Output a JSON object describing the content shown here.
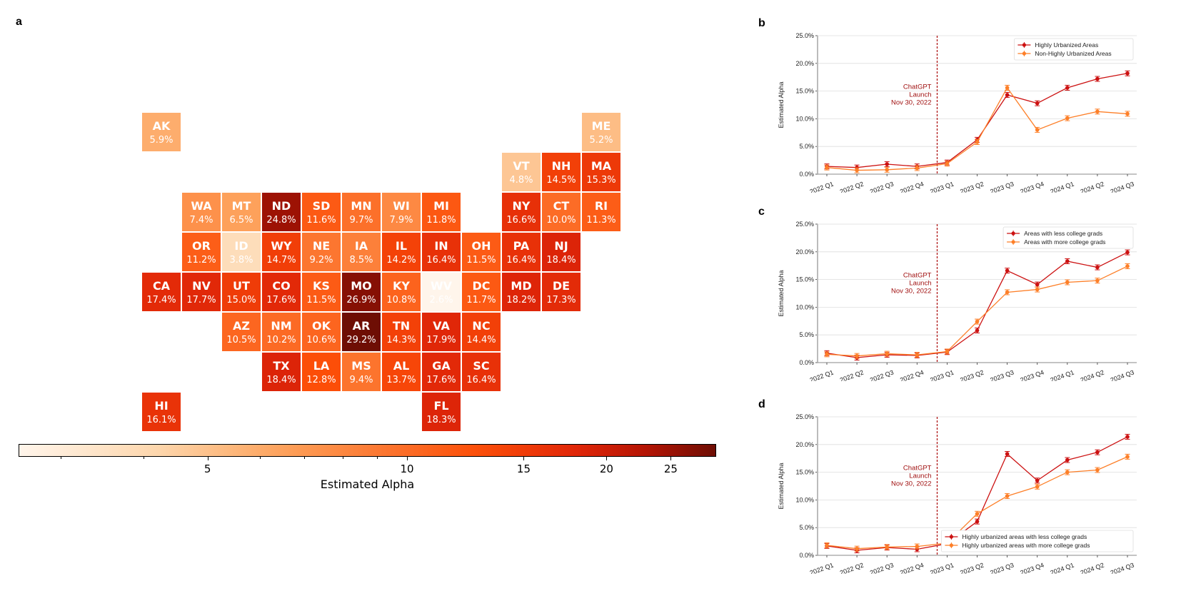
{
  "panel_a": {
    "letter": "a",
    "chart_data": {
      "type": "heatmap",
      "title": "",
      "colorbar_label": "Estimated Alpha",
      "colorbar_scale": "log",
      "colorbar_range": [
        2.6,
        29.2
      ],
      "colorbar_ticks": [
        "5",
        "10",
        "15",
        "20",
        "25"
      ],
      "colormap": "Oranges-to-dark-red",
      "states": [
        {
          "abbr": "AK",
          "value": 5.9,
          "label": "5.9%",
          "row": 0,
          "col": 0
        },
        {
          "abbr": "ME",
          "value": 5.2,
          "label": "5.2%",
          "row": 0,
          "col": 11
        },
        {
          "abbr": "VT",
          "value": 4.8,
          "label": "4.8%",
          "row": 1,
          "col": 9
        },
        {
          "abbr": "NH",
          "value": 14.5,
          "label": "14.5%",
          "row": 1,
          "col": 10
        },
        {
          "abbr": "MA",
          "value": 15.3,
          "label": "15.3%",
          "row": 1,
          "col": 11
        },
        {
          "abbr": "WA",
          "value": 7.4,
          "label": "7.4%",
          "row": 2,
          "col": 1
        },
        {
          "abbr": "MT",
          "value": 6.5,
          "label": "6.5%",
          "row": 2,
          "col": 2
        },
        {
          "abbr": "ND",
          "value": 24.8,
          "label": "24.8%",
          "row": 2,
          "col": 3
        },
        {
          "abbr": "SD",
          "value": 11.6,
          "label": "11.6%",
          "row": 2,
          "col": 4
        },
        {
          "abbr": "MN",
          "value": 9.7,
          "label": "9.7%",
          "row": 2,
          "col": 5
        },
        {
          "abbr": "WI",
          "value": 7.9,
          "label": "7.9%",
          "row": 2,
          "col": 6
        },
        {
          "abbr": "MI",
          "value": 11.8,
          "label": "11.8%",
          "row": 2,
          "col": 7
        },
        {
          "abbr": "NY",
          "value": 16.6,
          "label": "16.6%",
          "row": 2,
          "col": 9
        },
        {
          "abbr": "CT",
          "value": 10.0,
          "label": "10.0%",
          "row": 2,
          "col": 10
        },
        {
          "abbr": "RI",
          "value": 11.3,
          "label": "11.3%",
          "row": 2,
          "col": 11
        },
        {
          "abbr": "OR",
          "value": 11.2,
          "label": "11.2%",
          "row": 3,
          "col": 1
        },
        {
          "abbr": "ID",
          "value": 3.8,
          "label": "3.8%",
          "row": 3,
          "col": 2
        },
        {
          "abbr": "WY",
          "value": 14.7,
          "label": "14.7%",
          "row": 3,
          "col": 3
        },
        {
          "abbr": "NE",
          "value": 9.2,
          "label": "9.2%",
          "row": 3,
          "col": 4
        },
        {
          "abbr": "IA",
          "value": 8.5,
          "label": "8.5%",
          "row": 3,
          "col": 5
        },
        {
          "abbr": "IL",
          "value": 14.2,
          "label": "14.2%",
          "row": 3,
          "col": 6
        },
        {
          "abbr": "IN",
          "value": 16.4,
          "label": "16.4%",
          "row": 3,
          "col": 7
        },
        {
          "abbr": "OH",
          "value": 11.5,
          "label": "11.5%",
          "row": 3,
          "col": 8
        },
        {
          "abbr": "PA",
          "value": 16.4,
          "label": "16.4%",
          "row": 3,
          "col": 9
        },
        {
          "abbr": "NJ",
          "value": 18.4,
          "label": "18.4%",
          "row": 3,
          "col": 10
        },
        {
          "abbr": "CA",
          "value": 17.4,
          "label": "17.4%",
          "row": 4,
          "col": 0
        },
        {
          "abbr": "NV",
          "value": 17.7,
          "label": "17.7%",
          "row": 4,
          "col": 1
        },
        {
          "abbr": "UT",
          "value": 15.0,
          "label": "15.0%",
          "row": 4,
          "col": 2
        },
        {
          "abbr": "CO",
          "value": 17.6,
          "label": "17.6%",
          "row": 4,
          "col": 3
        },
        {
          "abbr": "KS",
          "value": 11.5,
          "label": "11.5%",
          "row": 4,
          "col": 4
        },
        {
          "abbr": "MO",
          "value": 26.9,
          "label": "26.9%",
          "row": 4,
          "col": 5
        },
        {
          "abbr": "KY",
          "value": 10.8,
          "label": "10.8%",
          "row": 4,
          "col": 6
        },
        {
          "abbr": "WV",
          "value": 2.6,
          "label": "2.6%",
          "row": 4,
          "col": 7
        },
        {
          "abbr": "DC",
          "value": 11.7,
          "label": "11.7%",
          "row": 4,
          "col": 8
        },
        {
          "abbr": "MD",
          "value": 18.2,
          "label": "18.2%",
          "row": 4,
          "col": 9
        },
        {
          "abbr": "DE",
          "value": 17.3,
          "label": "17.3%",
          "row": 4,
          "col": 10
        },
        {
          "abbr": "AZ",
          "value": 10.5,
          "label": "10.5%",
          "row": 5,
          "col": 2
        },
        {
          "abbr": "NM",
          "value": 10.2,
          "label": "10.2%",
          "row": 5,
          "col": 3
        },
        {
          "abbr": "OK",
          "value": 10.6,
          "label": "10.6%",
          "row": 5,
          "col": 4
        },
        {
          "abbr": "AR",
          "value": 29.2,
          "label": "29.2%",
          "row": 5,
          "col": 5
        },
        {
          "abbr": "TN",
          "value": 14.3,
          "label": "14.3%",
          "row": 5,
          "col": 6
        },
        {
          "abbr": "VA",
          "value": 17.9,
          "label": "17.9%",
          "row": 5,
          "col": 7
        },
        {
          "abbr": "NC",
          "value": 14.4,
          "label": "14.4%",
          "row": 5,
          "col": 8
        },
        {
          "abbr": "TX",
          "value": 18.4,
          "label": "18.4%",
          "row": 6,
          "col": 3
        },
        {
          "abbr": "LA",
          "value": 12.8,
          "label": "12.8%",
          "row": 6,
          "col": 4
        },
        {
          "abbr": "MS",
          "value": 9.4,
          "label": "9.4%",
          "row": 6,
          "col": 5
        },
        {
          "abbr": "AL",
          "value": 13.7,
          "label": "13.7%",
          "row": 6,
          "col": 6
        },
        {
          "abbr": "GA",
          "value": 17.6,
          "label": "17.6%",
          "row": 6,
          "col": 7
        },
        {
          "abbr": "SC",
          "value": 16.4,
          "label": "16.4%",
          "row": 6,
          "col": 8
        },
        {
          "abbr": "HI",
          "value": 16.1,
          "label": "16.1%",
          "row": 7,
          "col": 0
        },
        {
          "abbr": "FL",
          "value": 18.3,
          "label": "18.3%",
          "row": 7,
          "col": 7
        }
      ]
    }
  },
  "chart_data": [
    {
      "id": "b",
      "type": "line",
      "letter": "b",
      "title": "",
      "xlabel": "",
      "ylabel": "Estimated Alpha",
      "ylim": [
        0,
        25
      ],
      "yticks": [
        "0.0%",
        "5.0%",
        "10.0%",
        "15.0%",
        "20.0%",
        "25.0%"
      ],
      "grid": true,
      "categories": [
        "2022 Q1",
        "2022 Q2",
        "2022 Q3",
        "2022 Q4",
        "2023 Q1",
        "2023 Q2",
        "2023 Q3",
        "2023 Q4",
        "2024 Q1",
        "2024 Q2",
        "2024 Q3"
      ],
      "annotation": {
        "lines": [
          "ChatGPT",
          "Launch",
          "Nov 30, 2022"
        ],
        "between": [
          "2022 Q4",
          "2023 Q1"
        ]
      },
      "legend_position": "top-right",
      "series": [
        {
          "name": "Highly Urbanized Areas",
          "color": "#cc1111",
          "values": [
            1.4,
            1.2,
            1.8,
            1.4,
            2.1,
            6.2,
            14.3,
            12.8,
            15.6,
            17.2,
            18.2
          ]
        },
        {
          "name": "Non-Highly Urbanized Areas",
          "color": "#fd7f28",
          "values": [
            1.2,
            0.7,
            0.8,
            1.1,
            1.9,
            5.8,
            15.6,
            8.0,
            10.1,
            11.3,
            10.9
          ]
        }
      ]
    },
    {
      "id": "c",
      "type": "line",
      "letter": "c",
      "title": "",
      "xlabel": "",
      "ylabel": "Estimated Alpha",
      "ylim": [
        0,
        25
      ],
      "yticks": [
        "0.0%",
        "5.0%",
        "10.0%",
        "15.0%",
        "20.0%",
        "25.0%"
      ],
      "grid": true,
      "categories": [
        "2022 Q1",
        "2022 Q2",
        "2022 Q3",
        "2022 Q4",
        "2023 Q1",
        "2023 Q2",
        "2023 Q3",
        "2023 Q4",
        "2024 Q1",
        "2024 Q2",
        "2024 Q3"
      ],
      "annotation": {
        "lines": [
          "ChatGPT",
          "Launch",
          "Nov 30, 2022"
        ],
        "between": [
          "2022 Q4",
          "2023 Q1"
        ]
      },
      "legend_position": "top-right",
      "series": [
        {
          "name": "Areas with less college grads",
          "color": "#cc1111",
          "values": [
            1.7,
            0.9,
            1.4,
            1.3,
            1.9,
            5.8,
            16.6,
            14.1,
            18.3,
            17.2,
            19.9
          ]
        },
        {
          "name": "Areas with more college grads",
          "color": "#fd7f28",
          "values": [
            1.5,
            1.2,
            1.6,
            1.4,
            2.0,
            7.4,
            12.7,
            13.2,
            14.5,
            14.8,
            17.4
          ]
        }
      ]
    },
    {
      "id": "d",
      "type": "line",
      "letter": "d",
      "title": "",
      "xlabel": "",
      "ylabel": "Estimated Alpha",
      "ylim": [
        0,
        25
      ],
      "yticks": [
        "0.0%",
        "5.0%",
        "10.0%",
        "15.0%",
        "20.0%",
        "25.0%"
      ],
      "grid": true,
      "categories": [
        "2022 Q1",
        "2022 Q2",
        "2022 Q3",
        "2022 Q4",
        "2023 Q1",
        "2023 Q2",
        "2023 Q3",
        "2023 Q4",
        "2024 Q1",
        "2024 Q2",
        "2024 Q3"
      ],
      "annotation": {
        "lines": [
          "ChatGPT",
          "Launch",
          "Nov 30, 2022"
        ],
        "between": [
          "2022 Q4",
          "2023 Q1"
        ]
      },
      "legend_position": "bottom-right",
      "series": [
        {
          "name": "Highly urbanized areas with less college grads",
          "color": "#cc1111",
          "values": [
            1.7,
            0.9,
            1.4,
            1.1,
            2.1,
            6.1,
            18.3,
            13.5,
            17.2,
            18.6,
            21.4
          ]
        },
        {
          "name": "Highly urbanized areas with more college grads",
          "color": "#fd7f28",
          "values": [
            1.8,
            1.2,
            1.5,
            1.6,
            2.2,
            7.5,
            10.7,
            12.4,
            15.0,
            15.4,
            17.8
          ]
        }
      ]
    }
  ]
}
